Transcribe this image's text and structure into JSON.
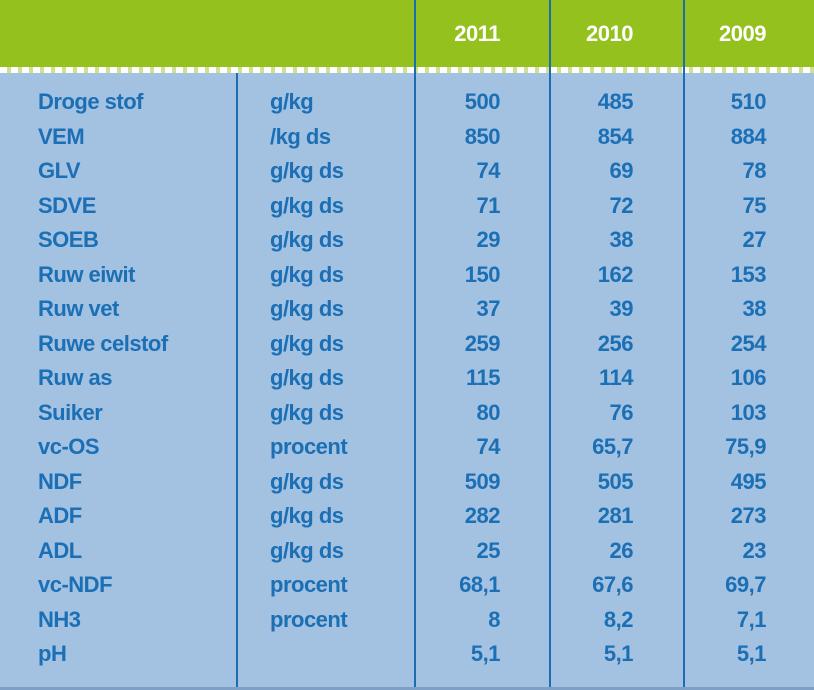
{
  "chart_data": {
    "type": "table",
    "title": "",
    "columns": [
      "",
      "",
      "2011",
      "2010",
      "2009"
    ],
    "header_years": [
      "2011",
      "2010",
      "2009"
    ],
    "rows": [
      {
        "label": "Droge stof",
        "unit": "g/kg",
        "values": [
          "500",
          "485",
          "510"
        ]
      },
      {
        "label": "VEM",
        "unit": "/kg ds",
        "values": [
          "850",
          "854",
          "884"
        ]
      },
      {
        "label": "GLV",
        "unit": "g/kg ds",
        "values": [
          "74",
          "69",
          "78"
        ]
      },
      {
        "label": "SDVE",
        "unit": "g/kg ds",
        "values": [
          "71",
          "72",
          "75"
        ]
      },
      {
        "label": "SOEB",
        "unit": "g/kg ds",
        "values": [
          "29",
          "38",
          "27"
        ]
      },
      {
        "label": "Ruw eiwit",
        "unit": "g/kg ds",
        "values": [
          "150",
          "162",
          "153"
        ]
      },
      {
        "label": "Ruw vet",
        "unit": "g/kg ds",
        "values": [
          "37",
          "39",
          "38"
        ]
      },
      {
        "label": "Ruwe celstof",
        "unit": "g/kg ds",
        "values": [
          "259",
          "256",
          "254"
        ]
      },
      {
        "label": "Ruw as",
        "unit": "g/kg ds",
        "values": [
          "115",
          "114",
          "106"
        ]
      },
      {
        "label": "Suiker",
        "unit": "g/kg ds",
        "values": [
          "80",
          "76",
          "103"
        ]
      },
      {
        "label": "vc-OS",
        "unit": "procent",
        "values": [
          "74",
          "65,7",
          "75,9"
        ]
      },
      {
        "label": "NDF",
        "unit": "g/kg ds",
        "values": [
          "509",
          "505",
          "495"
        ]
      },
      {
        "label": "ADF",
        "unit": "g/kg ds",
        "values": [
          "282",
          "281",
          "273"
        ]
      },
      {
        "label": "ADL",
        "unit": "g/kg ds",
        "values": [
          "25",
          "26",
          "23"
        ]
      },
      {
        "label": "vc-NDF",
        "unit": "procent",
        "values": [
          "68,1",
          "67,6",
          "69,7"
        ]
      },
      {
        "label": "NH3",
        "unit": "procent",
        "values": [
          "8",
          "8,2",
          "7,1"
        ]
      },
      {
        "label": "pH",
        "unit": "",
        "values": [
          "5,1",
          "5,1",
          "5,1"
        ]
      }
    ]
  },
  "colors": {
    "header_bg": "#94c11e",
    "body_bg": "#a3c1e1",
    "text_blue": "#1b6fb5",
    "header_text": "#ffffff",
    "grid_line": "#1e6cb0",
    "dash_gap": "#cfe093"
  }
}
